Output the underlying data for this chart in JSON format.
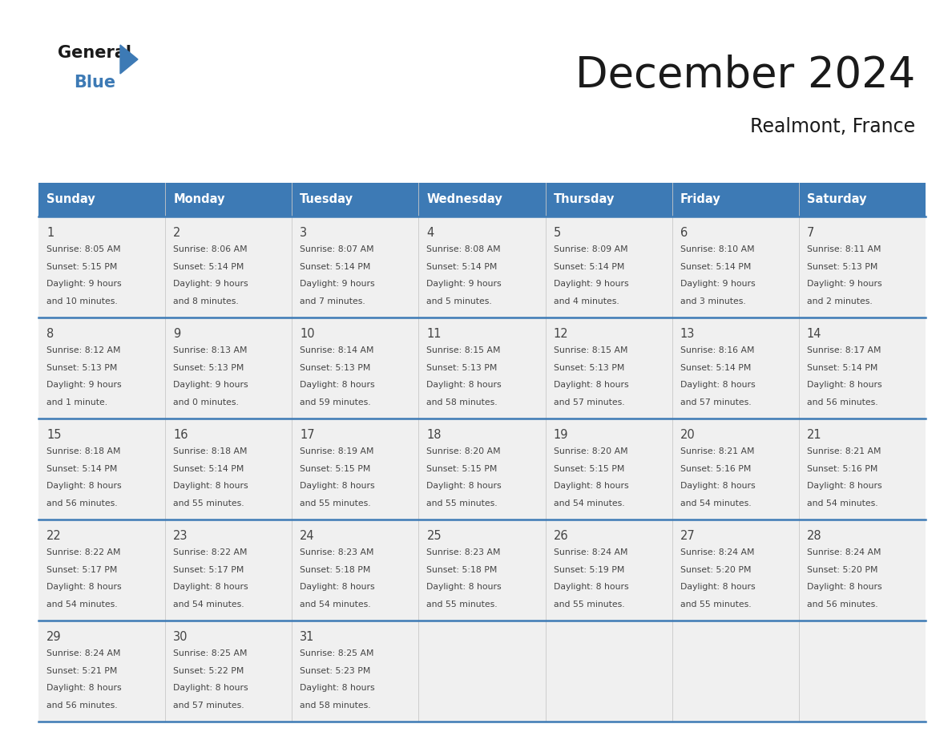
{
  "title": "December 2024",
  "subtitle": "Realmont, France",
  "header_color": "#3d7ab5",
  "header_text_color": "#ffffff",
  "cell_bg_light": "#f0f0f0",
  "cell_bg_white": "#ffffff",
  "divider_color": "#3d7ab5",
  "text_color": "#444444",
  "day_headers": [
    "Sunday",
    "Monday",
    "Tuesday",
    "Wednesday",
    "Thursday",
    "Friday",
    "Saturday"
  ],
  "weeks": [
    [
      {
        "day": 1,
        "sunrise": "8:05 AM",
        "sunset": "5:15 PM",
        "daylight_line1": "9 hours",
        "daylight_line2": "and 10 minutes."
      },
      {
        "day": 2,
        "sunrise": "8:06 AM",
        "sunset": "5:14 PM",
        "daylight_line1": "9 hours",
        "daylight_line2": "and 8 minutes."
      },
      {
        "day": 3,
        "sunrise": "8:07 AM",
        "sunset": "5:14 PM",
        "daylight_line1": "9 hours",
        "daylight_line2": "and 7 minutes."
      },
      {
        "day": 4,
        "sunrise": "8:08 AM",
        "sunset": "5:14 PM",
        "daylight_line1": "9 hours",
        "daylight_line2": "and 5 minutes."
      },
      {
        "day": 5,
        "sunrise": "8:09 AM",
        "sunset": "5:14 PM",
        "daylight_line1": "9 hours",
        "daylight_line2": "and 4 minutes."
      },
      {
        "day": 6,
        "sunrise": "8:10 AM",
        "sunset": "5:14 PM",
        "daylight_line1": "9 hours",
        "daylight_line2": "and 3 minutes."
      },
      {
        "day": 7,
        "sunrise": "8:11 AM",
        "sunset": "5:13 PM",
        "daylight_line1": "9 hours",
        "daylight_line2": "and 2 minutes."
      }
    ],
    [
      {
        "day": 8,
        "sunrise": "8:12 AM",
        "sunset": "5:13 PM",
        "daylight_line1": "9 hours",
        "daylight_line2": "and 1 minute."
      },
      {
        "day": 9,
        "sunrise": "8:13 AM",
        "sunset": "5:13 PM",
        "daylight_line1": "9 hours",
        "daylight_line2": "and 0 minutes."
      },
      {
        "day": 10,
        "sunrise": "8:14 AM",
        "sunset": "5:13 PM",
        "daylight_line1": "8 hours",
        "daylight_line2": "and 59 minutes."
      },
      {
        "day": 11,
        "sunrise": "8:15 AM",
        "sunset": "5:13 PM",
        "daylight_line1": "8 hours",
        "daylight_line2": "and 58 minutes."
      },
      {
        "day": 12,
        "sunrise": "8:15 AM",
        "sunset": "5:13 PM",
        "daylight_line1": "8 hours",
        "daylight_line2": "and 57 minutes."
      },
      {
        "day": 13,
        "sunrise": "8:16 AM",
        "sunset": "5:14 PM",
        "daylight_line1": "8 hours",
        "daylight_line2": "and 57 minutes."
      },
      {
        "day": 14,
        "sunrise": "8:17 AM",
        "sunset": "5:14 PM",
        "daylight_line1": "8 hours",
        "daylight_line2": "and 56 minutes."
      }
    ],
    [
      {
        "day": 15,
        "sunrise": "8:18 AM",
        "sunset": "5:14 PM",
        "daylight_line1": "8 hours",
        "daylight_line2": "and 56 minutes."
      },
      {
        "day": 16,
        "sunrise": "8:18 AM",
        "sunset": "5:14 PM",
        "daylight_line1": "8 hours",
        "daylight_line2": "and 55 minutes."
      },
      {
        "day": 17,
        "sunrise": "8:19 AM",
        "sunset": "5:15 PM",
        "daylight_line1": "8 hours",
        "daylight_line2": "and 55 minutes."
      },
      {
        "day": 18,
        "sunrise": "8:20 AM",
        "sunset": "5:15 PM",
        "daylight_line1": "8 hours",
        "daylight_line2": "and 55 minutes."
      },
      {
        "day": 19,
        "sunrise": "8:20 AM",
        "sunset": "5:15 PM",
        "daylight_line1": "8 hours",
        "daylight_line2": "and 54 minutes."
      },
      {
        "day": 20,
        "sunrise": "8:21 AM",
        "sunset": "5:16 PM",
        "daylight_line1": "8 hours",
        "daylight_line2": "and 54 minutes."
      },
      {
        "day": 21,
        "sunrise": "8:21 AM",
        "sunset": "5:16 PM",
        "daylight_line1": "8 hours",
        "daylight_line2": "and 54 minutes."
      }
    ],
    [
      {
        "day": 22,
        "sunrise": "8:22 AM",
        "sunset": "5:17 PM",
        "daylight_line1": "8 hours",
        "daylight_line2": "and 54 minutes."
      },
      {
        "day": 23,
        "sunrise": "8:22 AM",
        "sunset": "5:17 PM",
        "daylight_line1": "8 hours",
        "daylight_line2": "and 54 minutes."
      },
      {
        "day": 24,
        "sunrise": "8:23 AM",
        "sunset": "5:18 PM",
        "daylight_line1": "8 hours",
        "daylight_line2": "and 54 minutes."
      },
      {
        "day": 25,
        "sunrise": "8:23 AM",
        "sunset": "5:18 PM",
        "daylight_line1": "8 hours",
        "daylight_line2": "and 55 minutes."
      },
      {
        "day": 26,
        "sunrise": "8:24 AM",
        "sunset": "5:19 PM",
        "daylight_line1": "8 hours",
        "daylight_line2": "and 55 minutes."
      },
      {
        "day": 27,
        "sunrise": "8:24 AM",
        "sunset": "5:20 PM",
        "daylight_line1": "8 hours",
        "daylight_line2": "and 55 minutes."
      },
      {
        "day": 28,
        "sunrise": "8:24 AM",
        "sunset": "5:20 PM",
        "daylight_line1": "8 hours",
        "daylight_line2": "and 56 minutes."
      }
    ],
    [
      {
        "day": 29,
        "sunrise": "8:24 AM",
        "sunset": "5:21 PM",
        "daylight_line1": "8 hours",
        "daylight_line2": "and 56 minutes."
      },
      {
        "day": 30,
        "sunrise": "8:25 AM",
        "sunset": "5:22 PM",
        "daylight_line1": "8 hours",
        "daylight_line2": "and 57 minutes."
      },
      {
        "day": 31,
        "sunrise": "8:25 AM",
        "sunset": "5:23 PM",
        "daylight_line1": "8 hours",
        "daylight_line2": "and 58 minutes."
      },
      null,
      null,
      null,
      null
    ]
  ],
  "logo_general_color": "#1a1a1a",
  "logo_blue_color": "#3d7ab5",
  "background_color": "#ffffff"
}
